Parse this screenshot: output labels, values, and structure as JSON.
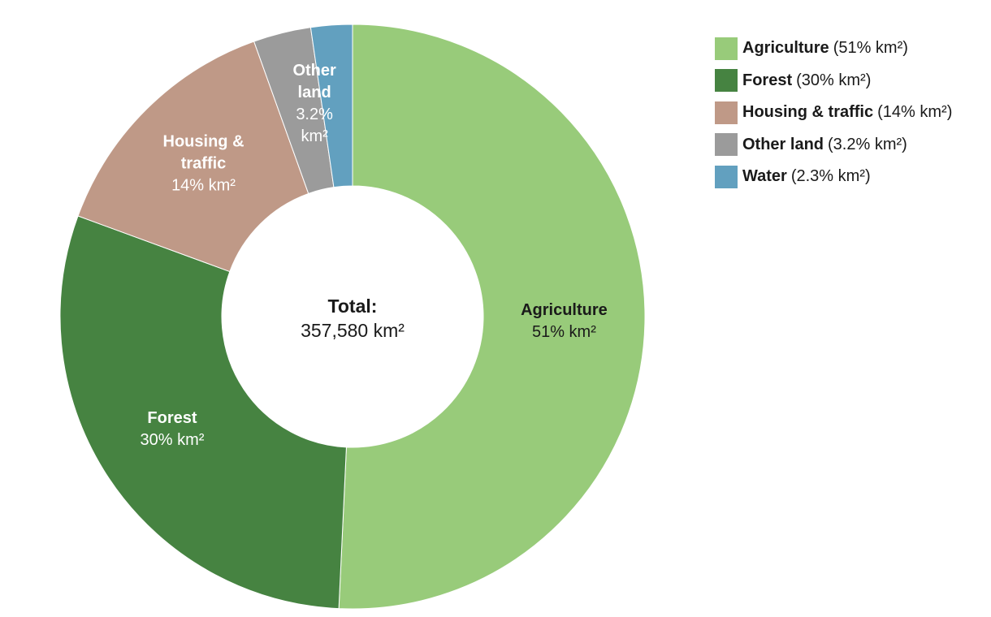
{
  "chart_data": {
    "type": "pie",
    "variant": "donut",
    "center_label": {
      "title": "Total:",
      "value": "357,580 km²"
    },
    "slices": [
      {
        "name": "Agriculture",
        "value": 51,
        "value_label": "51% km²",
        "legend_value": "(51% km²)",
        "color": "#98cb7a",
        "label_color": "#1a1a1a"
      },
      {
        "name": "Forest",
        "value": 30,
        "value_label": "30% km²",
        "legend_value": "(30% km²)",
        "color": "#468341",
        "label_color": "#ffffff"
      },
      {
        "name": "Housing & traffic",
        "value": 14,
        "value_label": "14% km²",
        "legend_value": "(14% km²)",
        "color": "#bf9987",
        "label_color": "#ffffff"
      },
      {
        "name": "Other land",
        "value": 3.2,
        "value_label": "3.2% km²",
        "legend_value": "(3.2% km²)",
        "color": "#9b9b9b",
        "label_color": "#ffffff"
      },
      {
        "name": "Water",
        "value": 2.3,
        "value_label": "",
        "legend_value": "(2.3% km²)",
        "color": "#62a0bf",
        "label_color": "#ffffff"
      }
    ],
    "legend_position": "top-right"
  }
}
